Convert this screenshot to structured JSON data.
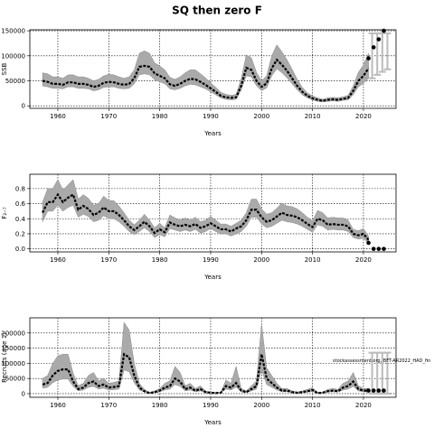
{
  "chart_data": [
    {
      "type": "line",
      "title": "SQ then zero F",
      "xlabel": "Years",
      "ylabel": "SSB",
      "grid": true,
      "xlim": [
        1954.5,
        2026.4
      ],
      "xticks": [
        1960,
        1970,
        1980,
        1990,
        2000,
        2010,
        2020
      ],
      "ylim": [
        -5000,
        152000
      ],
      "yticks": [
        0,
        50000,
        100000,
        150000
      ],
      "series": [
        {
          "color": "#000000",
          "band_color": "#aaaaaa",
          "x": [
            1957,
            1958,
            1959,
            1960,
            1961,
            1962,
            1963,
            1964,
            1965,
            1966,
            1967,
            1968,
            1969,
            1970,
            1971,
            1972,
            1973,
            1974,
            1975,
            1976,
            1977,
            1978,
            1979,
            1980,
            1981,
            1982,
            1983,
            1984,
            1985,
            1986,
            1987,
            1988,
            1989,
            1990,
            1991,
            1992,
            1993,
            1994,
            1995,
            1996,
            1997,
            1998,
            1999,
            2000,
            2001,
            2002,
            2003,
            2004,
            2005,
            2006,
            2007,
            2008,
            2009,
            2010,
            2011,
            2012,
            2013,
            2014,
            2015,
            2016,
            2017,
            2018,
            2019,
            2020,
            2021
          ],
          "values": [
            50000,
            48000,
            44000,
            44000,
            42000,
            47000,
            47000,
            44000,
            44000,
            42000,
            38000,
            40000,
            46000,
            48000,
            47000,
            44000,
            42000,
            44000,
            55000,
            78000,
            80000,
            78000,
            65000,
            60000,
            55000,
            43000,
            40000,
            44000,
            50000,
            54000,
            53000,
            48000,
            42000,
            35000,
            28000,
            20000,
            17000,
            16000,
            17000,
            40000,
            76000,
            72000,
            50000,
            38000,
            45000,
            75000,
            92000,
            82000,
            70000,
            55000,
            40000,
            28000,
            20000,
            15000,
            12000,
            10000,
            12000,
            13000,
            12000,
            14000,
            16000,
            30000,
            50000,
            60000,
            75000
          ],
          "lower": [
            40000,
            38000,
            35000,
            35000,
            34000,
            38000,
            38000,
            35000,
            35000,
            34000,
            30000,
            32000,
            37000,
            38000,
            38000,
            35000,
            34000,
            35000,
            44000,
            62000,
            64000,
            62000,
            52000,
            48000,
            44000,
            34000,
            32000,
            35000,
            40000,
            43000,
            42000,
            38000,
            34000,
            28000,
            22000,
            16000,
            13000,
            12000,
            13000,
            32000,
            60000,
            58000,
            40000,
            30000,
            36000,
            60000,
            74000,
            66000,
            56000,
            44000,
            32000,
            22000,
            16000,
            12000,
            9000,
            8000,
            9000,
            10000,
            9000,
            11000,
            12000,
            22000,
            38000,
            45000,
            55000
          ],
          "upper": [
            66000,
            64000,
            58000,
            58000,
            55000,
            62000,
            62000,
            58000,
            58000,
            55000,
            50000,
            53000,
            60000,
            63000,
            62000,
            58000,
            55000,
            58000,
            72000,
            105000,
            110000,
            105000,
            86000,
            80000,
            72000,
            57000,
            53000,
            58000,
            66000,
            72000,
            72000,
            64000,
            56000,
            46000,
            37000,
            27000,
            23000,
            21000,
            23000,
            54000,
            102000,
            96000,
            67000,
            50000,
            60000,
            100000,
            122000,
            108000,
            92000,
            73000,
            53000,
            37000,
            26000,
            20000,
            16000,
            13000,
            16000,
            17000,
            16000,
            18000,
            21000,
            40000,
            67000,
            82000,
            105000
          ]
        },
        {
          "color": "#000000",
          "band_color": "#bbbbbb",
          "x": [
            2021,
            2022,
            2023,
            2024
          ],
          "values": [
            95000,
            117000,
            133000,
            150000
          ],
          "lower": [
            55000,
            62000,
            68000,
            73000
          ],
          "upper": [
            145000,
            145000,
            145000,
            145000
          ]
        }
      ]
    },
    {
      "type": "line",
      "xlabel": "Years",
      "ylabel": "F₂₋₇",
      "grid": true,
      "xlim": [
        1954.5,
        2026.4
      ],
      "xticks": [
        1960,
        1970,
        1980,
        1990,
        2000,
        2010,
        2020
      ],
      "ylim": [
        -0.04,
        0.99
      ],
      "yticks": [
        {
          "value": 0,
          "label": "0.0"
        },
        0.2,
        0.4,
        0.6,
        0.8
      ],
      "series": [
        {
          "color": "#000000",
          "band_color": "#aaaaaa",
          "x": [
            1957,
            1958,
            1959,
            1960,
            1961,
            1962,
            1963,
            1964,
            1965,
            1966,
            1967,
            1968,
            1969,
            1970,
            1971,
            1972,
            1973,
            1974,
            1975,
            1976,
            1977,
            1978,
            1979,
            1980,
            1981,
            1982,
            1983,
            1984,
            1985,
            1986,
            1987,
            1988,
            1989,
            1990,
            1991,
            1992,
            1993,
            1994,
            1995,
            1996,
            1997,
            1998,
            1999,
            2000,
            2001,
            2002,
            2003,
            2004,
            2005,
            2006,
            2007,
            2008,
            2009,
            2010,
            2011,
            2012,
            2013,
            2014,
            2015,
            2016,
            2017,
            2018,
            2019,
            2020,
            2021
          ],
          "values": [
            0.48,
            0.62,
            0.62,
            0.72,
            0.62,
            0.68,
            0.72,
            0.52,
            0.57,
            0.53,
            0.45,
            0.48,
            0.55,
            0.5,
            0.5,
            0.45,
            0.38,
            0.3,
            0.25,
            0.3,
            0.36,
            0.3,
            0.21,
            0.26,
            0.22,
            0.35,
            0.32,
            0.3,
            0.32,
            0.3,
            0.33,
            0.28,
            0.3,
            0.34,
            0.3,
            0.26,
            0.26,
            0.23,
            0.27,
            0.3,
            0.38,
            0.52,
            0.52,
            0.42,
            0.36,
            0.38,
            0.43,
            0.48,
            0.45,
            0.44,
            0.42,
            0.38,
            0.33,
            0.29,
            0.4,
            0.38,
            0.32,
            0.33,
            0.32,
            0.32,
            0.3,
            0.2,
            0.18,
            0.2,
            0.12
          ],
          "lower": [
            0.36,
            0.5,
            0.5,
            0.58,
            0.5,
            0.55,
            0.58,
            0.42,
            0.46,
            0.43,
            0.36,
            0.38,
            0.44,
            0.4,
            0.4,
            0.36,
            0.3,
            0.23,
            0.19,
            0.23,
            0.28,
            0.23,
            0.15,
            0.19,
            0.16,
            0.27,
            0.25,
            0.23,
            0.25,
            0.23,
            0.26,
            0.21,
            0.23,
            0.27,
            0.23,
            0.2,
            0.2,
            0.17,
            0.2,
            0.23,
            0.3,
            0.42,
            0.42,
            0.33,
            0.28,
            0.3,
            0.34,
            0.38,
            0.36,
            0.35,
            0.33,
            0.3,
            0.26,
            0.22,
            0.32,
            0.3,
            0.25,
            0.26,
            0.25,
            0.25,
            0.23,
            0.15,
            0.13,
            0.14,
            0.07
          ],
          "upper": [
            0.62,
            0.8,
            0.8,
            0.92,
            0.78,
            0.85,
            0.92,
            0.66,
            0.72,
            0.67,
            0.58,
            0.6,
            0.7,
            0.64,
            0.64,
            0.57,
            0.48,
            0.38,
            0.32,
            0.38,
            0.46,
            0.38,
            0.28,
            0.34,
            0.28,
            0.45,
            0.41,
            0.38,
            0.41,
            0.38,
            0.42,
            0.36,
            0.38,
            0.43,
            0.38,
            0.33,
            0.33,
            0.3,
            0.34,
            0.38,
            0.48,
            0.66,
            0.66,
            0.53,
            0.46,
            0.48,
            0.54,
            0.61,
            0.57,
            0.56,
            0.53,
            0.48,
            0.42,
            0.37,
            0.51,
            0.48,
            0.41,
            0.42,
            0.41,
            0.41,
            0.38,
            0.26,
            0.24,
            0.27,
            0.17
          ]
        },
        {
          "color": "#000000",
          "x": [
            2021,
            2022,
            2023,
            2024
          ],
          "values": [
            0.08,
            0,
            0,
            0
          ]
        }
      ]
    },
    {
      "type": "line",
      "xlabel": "Years",
      "ylabel": "Recruits (age 1)",
      "grid": true,
      "annotation": "stockassessment.org, BFT-AR2022_HAD_fin",
      "xlim": [
        1954.5,
        2026.4
      ],
      "xticks": [
        1960,
        1970,
        1980,
        1990,
        2000,
        2010,
        2020
      ],
      "ylim": [
        -12000,
        250000
      ],
      "yticks": [
        0,
        50000,
        100000,
        150000,
        200000
      ],
      "series": [
        {
          "color": "#000000",
          "band_color": "#aaaaaa",
          "x": [
            1957,
            1958,
            1959,
            1960,
            1961,
            1962,
            1963,
            1964,
            1965,
            1966,
            1967,
            1968,
            1969,
            1970,
            1971,
            1972,
            1973,
            1974,
            1975,
            1976,
            1977,
            1978,
            1979,
            1980,
            1981,
            1982,
            1983,
            1984,
            1985,
            1986,
            1987,
            1988,
            1989,
            1990,
            1991,
            1992,
            1993,
            1994,
            1995,
            1996,
            1997,
            1998,
            1999,
            2000,
            2001,
            2002,
            2003,
            2004,
            2005,
            2006,
            2007,
            2008,
            2009,
            2010,
            2011,
            2012,
            2013,
            2014,
            2015,
            2016,
            2017,
            2018,
            2019,
            2020,
            2021
          ],
          "values": [
            30000,
            35000,
            60000,
            75000,
            80000,
            80000,
            40000,
            15000,
            20000,
            35000,
            40000,
            25000,
            30000,
            20000,
            22000,
            25000,
            130000,
            120000,
            60000,
            20000,
            8000,
            2000,
            5000,
            10000,
            20000,
            25000,
            50000,
            40000,
            15000,
            20000,
            10000,
            15000,
            5000,
            3000,
            2000,
            3000,
            25000,
            20000,
            35000,
            10000,
            5000,
            15000,
            25000,
            130000,
            50000,
            35000,
            20000,
            10000,
            10000,
            5000,
            3000,
            5000,
            8000,
            12000,
            2000,
            3000,
            8000,
            10000,
            8000,
            20000,
            25000,
            40000,
            15000,
            10000,
            10000
          ],
          "lower": [
            18000,
            21000,
            36000,
            45000,
            48000,
            48000,
            24000,
            9000,
            12000,
            21000,
            24000,
            15000,
            18000,
            12000,
            13000,
            15000,
            78000,
            72000,
            36000,
            12000,
            5000,
            1000,
            3000,
            6000,
            12000,
            15000,
            30000,
            24000,
            9000,
            12000,
            6000,
            9000,
            3000,
            2000,
            1000,
            2000,
            15000,
            12000,
            21000,
            6000,
            3000,
            9000,
            15000,
            78000,
            30000,
            21000,
            12000,
            6000,
            6000,
            3000,
            2000,
            3000,
            5000,
            7000,
            1000,
            2000,
            5000,
            6000,
            5000,
            12000,
            15000,
            24000,
            9000,
            6000,
            5000
          ],
          "upper": [
            50000,
            60000,
            100000,
            125000,
            130000,
            130000,
            68000,
            26000,
            34000,
            60000,
            70000,
            42000,
            50000,
            34000,
            37000,
            42000,
            235000,
            210000,
            100000,
            34000,
            14000,
            4000,
            9000,
            17000,
            34000,
            42000,
            90000,
            70000,
            26000,
            34000,
            17000,
            26000,
            9000,
            5000,
            4000,
            5000,
            45000,
            34000,
            90000,
            17000,
            9000,
            26000,
            42000,
            230000,
            85000,
            60000,
            34000,
            17000,
            17000,
            9000,
            5000,
            9000,
            14000,
            20000,
            4000,
            5000,
            14000,
            17000,
            14000,
            34000,
            42000,
            70000,
            26000,
            17000,
            17000
          ]
        },
        {
          "color": "#000000",
          "band_color": "#bbbbbb",
          "x": [
            2021,
            2022,
            2023,
            2024
          ],
          "values": [
            10000,
            10000,
            10000,
            10000
          ],
          "lower": [
            0,
            0,
            0,
            0
          ],
          "upper": [
            135000,
            135000,
            135000,
            135000
          ]
        }
      ]
    }
  ]
}
